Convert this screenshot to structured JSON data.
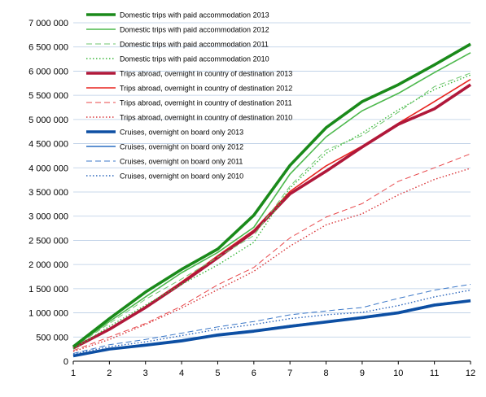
{
  "chart_data": {
    "type": "line",
    "title": "",
    "xlabel": "",
    "ylabel": "",
    "x": [
      1,
      2,
      3,
      4,
      5,
      6,
      7,
      8,
      9,
      10,
      11,
      12
    ],
    "xlim": [
      1,
      12
    ],
    "ylim": [
      0,
      7000000
    ],
    "yticks": [
      0,
      500000,
      1000000,
      1500000,
      2000000,
      2500000,
      3000000,
      3500000,
      4000000,
      4500000,
      5000000,
      5500000,
      6000000,
      6500000,
      7000000
    ],
    "ytick_labels": [
      "0",
      "500 000",
      "1 000 000",
      "1 500 000",
      "2 000 000",
      "2 500 000",
      "3 000 000",
      "3 500 000",
      "4 000 000",
      "4 500 000",
      "5 000 000",
      "5 500 000",
      "6 000 000",
      "6 500 000",
      "7 000 000"
    ],
    "xtick_labels": [
      "1",
      "2",
      "3",
      "4",
      "5",
      "6",
      "7",
      "8",
      "9",
      "10",
      "11",
      "12"
    ],
    "grid": "horizontal",
    "legend_position": "top-left",
    "series": [
      {
        "name": "Domestic trips with paid accommodation 2013",
        "color": "#1a8a1a",
        "style": "solid-thick",
        "values": [
          300000,
          880000,
          1430000,
          1900000,
          2320000,
          3020000,
          4050000,
          4830000,
          5370000,
          5720000,
          6130000,
          6560000
        ]
      },
      {
        "name": "Domestic trips with paid accommodation 2012",
        "color": "#4cb84c",
        "style": "solid",
        "values": [
          290000,
          820000,
          1330000,
          1830000,
          2250000,
          2770000,
          3870000,
          4640000,
          5180000,
          5540000,
          5970000,
          6380000
        ]
      },
      {
        "name": "Domestic trips with paid accommodation 2011",
        "color": "#6fc66f",
        "style": "dashed",
        "values": [
          280000,
          780000,
          1280000,
          1700000,
          2150000,
          2600000,
          3620000,
          4370000,
          4670000,
          5150000,
          5680000,
          5960000
        ]
      },
      {
        "name": "Domestic trips with paid accommodation 2010",
        "color": "#3db83d",
        "style": "dotted",
        "values": [
          250000,
          720000,
          1160000,
          1590000,
          1990000,
          2460000,
          3580000,
          4300000,
          4720000,
          5200000,
          5620000,
          5920000
        ]
      },
      {
        "name": "Trips abroad,  overnight in country of destination 2013",
        "color": "#b0183a",
        "style": "solid-thick",
        "values": [
          270000,
          660000,
          1110000,
          1610000,
          2140000,
          2680000,
          3460000,
          3930000,
          4430000,
          4900000,
          5220000,
          5720000
        ]
      },
      {
        "name": "Trips abroad,  overnight in country of destination 2012",
        "color": "#e8231f",
        "style": "solid",
        "values": [
          260000,
          670000,
          1130000,
          1640000,
          2180000,
          2710000,
          3510000,
          4040000,
          4450000,
          4920000,
          5370000,
          5830000
        ]
      },
      {
        "name": "Trips abroad,  overnight in country of destination 2011",
        "color": "#e8474a",
        "style": "dashed",
        "values": [
          220000,
          500000,
          780000,
          1140000,
          1580000,
          1940000,
          2550000,
          2980000,
          3260000,
          3720000,
          4000000,
          4290000
        ]
      },
      {
        "name": "Trips abroad,  overnight in country of destination 2010",
        "color": "#d9363a",
        "style": "dotted",
        "values": [
          200000,
          450000,
          760000,
          1100000,
          1480000,
          1860000,
          2380000,
          2820000,
          3050000,
          3440000,
          3760000,
          3990000
        ]
      },
      {
        "name": "Cruises, overnight on board only 2013",
        "color": "#0d4fa3",
        "style": "solid-thick",
        "values": [
          110000,
          250000,
          330000,
          420000,
          540000,
          620000,
          720000,
          810000,
          900000,
          1000000,
          1160000,
          1250000
        ]
      },
      {
        "name": "Cruises, overnight on board only 2012",
        "color": "#2a6fc4",
        "style": "solid",
        "values": [
          120000,
          260000,
          350000,
          440000,
          560000,
          640000,
          740000,
          830000,
          920000,
          1020000,
          1180000,
          1260000
        ]
      },
      {
        "name": "Cruises, overnight on board only 2011",
        "color": "#3c78c8",
        "style": "dashed",
        "values": [
          160000,
          340000,
          450000,
          580000,
          710000,
          820000,
          960000,
          1040000,
          1110000,
          1300000,
          1470000,
          1590000
        ]
      },
      {
        "name": "Cruises, overnight on board only 2010",
        "color": "#2c66bc",
        "style": "dotted",
        "values": [
          150000,
          300000,
          400000,
          530000,
          660000,
          760000,
          880000,
          960000,
          1010000,
          1150000,
          1330000,
          1470000
        ]
      }
    ]
  }
}
